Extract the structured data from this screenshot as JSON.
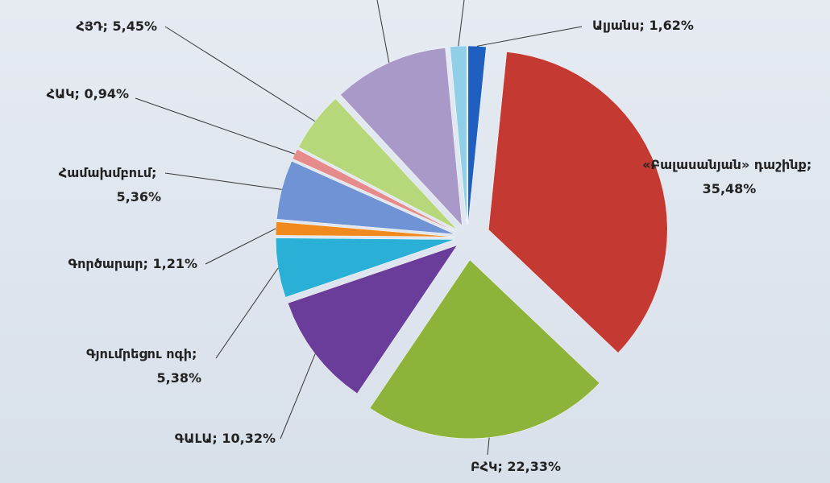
{
  "chart_data": {
    "type": "pie",
    "categories": [
      "Ալյանս",
      "«Բալասանյան» դաշինք",
      "ԲՀԿ",
      "ԳԱԼԱ",
      "Գյումրեցու ոգի",
      "Գործարար",
      "Համախմբում",
      "ՀԱԿ",
      "ՀՅԴ",
      null,
      null
    ],
    "values": [
      1.62,
      35.48,
      22.33,
      10.32,
      5.38,
      1.21,
      5.36,
      0.94,
      5.45,
      10.4,
      1.5
    ],
    "value_labels": [
      "1,62%",
      "35,48%",
      "22,33%",
      "10,32%",
      "5,38%",
      "1,21%",
      "5,36%",
      "0,94%",
      "5,45%",
      null,
      null
    ],
    "label_separator": "; ",
    "colors": [
      "#1f5fbf",
      "#c43a33",
      "#8db33a",
      "#6a3d9a",
      "#2ab0d6",
      "#f08a1e",
      "#6f93d4",
      "#e58b8b",
      "#b7d77b",
      "#a999c8",
      "#8fd0e8"
    ]
  }
}
